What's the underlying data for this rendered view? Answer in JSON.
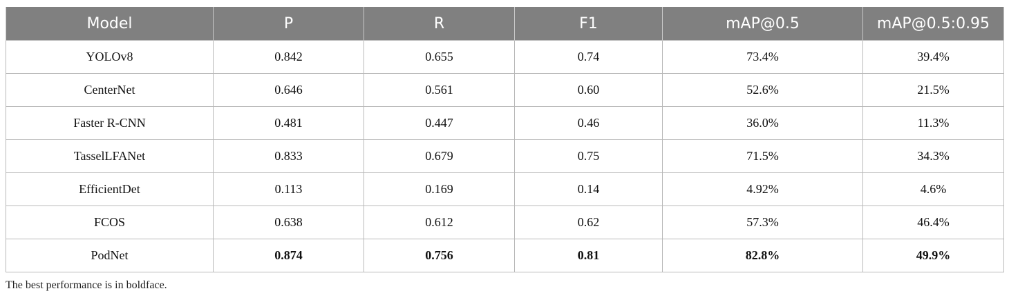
{
  "table": {
    "columns": [
      "Model",
      "P",
      "R",
      "F1",
      "mAP@0.5",
      "mAP@0.5:0.95"
    ],
    "rows": [
      {
        "model": "YOLOv8",
        "p": "0.842",
        "r": "0.655",
        "f1": "0.74",
        "map50": "73.4%",
        "map5095": "39.4%"
      },
      {
        "model": "CenterNet",
        "p": "0.646",
        "r": "0.561",
        "f1": "0.60",
        "map50": "52.6%",
        "map5095": "21.5%"
      },
      {
        "model": "Faster R-CNN",
        "p": "0.481",
        "r": "0.447",
        "f1": "0.46",
        "map50": "36.0%",
        "map5095": "11.3%"
      },
      {
        "model": "TasselLFANet",
        "p": "0.833",
        "r": "0.679",
        "f1": "0.75",
        "map50": "71.5%",
        "map5095": "34.3%"
      },
      {
        "model": "EfficientDet",
        "p": "0.113",
        "r": "0.169",
        "f1": "0.14",
        "map50": "4.92%",
        "map5095": "4.6%"
      },
      {
        "model": "FCOS",
        "p": "0.638",
        "r": "0.612",
        "f1": "0.62",
        "map50": "57.3%",
        "map5095": "46.4%"
      },
      {
        "model": "PodNet",
        "p": "0.874",
        "r": "0.756",
        "f1": "0.81",
        "map50": "82.8%",
        "map5095": "49.9%",
        "best": true
      }
    ]
  },
  "footnote": "The best performance is in boldface.",
  "colors": {
    "header_bg": "#808080",
    "header_text": "#ffffff",
    "grid": "#b8b8b8"
  }
}
